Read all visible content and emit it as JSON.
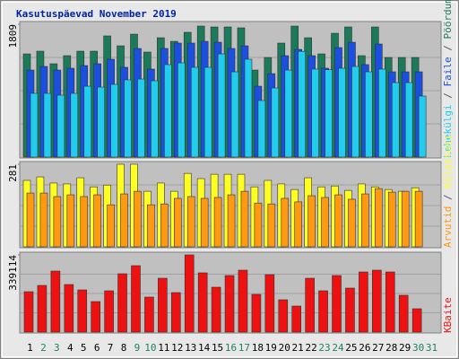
{
  "chart_data": {
    "type": "bar",
    "title": "Kasutuspäevad November 2019",
    "categories": [
      "1",
      "2",
      "3",
      "4",
      "5",
      "6",
      "7",
      "8",
      "9",
      "10",
      "11",
      "12",
      "13",
      "14",
      "15",
      "16",
      "17",
      "18",
      "19",
      "20",
      "21",
      "22",
      "23",
      "24",
      "25",
      "26",
      "27",
      "28",
      "29",
      "30",
      "31"
    ],
    "weekend": [
      "2",
      "3",
      "9",
      "10",
      "16",
      "17",
      "23",
      "24",
      "30",
      "31"
    ],
    "weekend_color": "#208060",
    "panels": [
      {
        "ylim": [
          0,
          1809
        ],
        "yticks": [
          1809
        ],
        "series": [
          {
            "name": "Pöördumisi",
            "color": "#1a7a5a",
            "values": [
              1405,
              1442,
              1271,
              1381,
              1442,
              1442,
              1650,
              1515,
              1674,
              1430,
              1625,
              1576,
              1699,
              1784,
              1772,
              1772,
              1760,
              1185,
              1356,
              1552,
              1784,
              1625,
              1405,
              1686,
              1772,
              1381,
              1772,
              1356,
              1356,
              1356,
              null
            ]
          },
          {
            "name": "Faile",
            "color": "#1a4fe0",
            "values": [
              1185,
              1234,
              1185,
              1210,
              1246,
              1271,
              1332,
              1222,
              1479,
              1198,
              1479,
              1552,
              1552,
              1576,
              1564,
              1479,
              1515,
              965,
              1136,
              1381,
              1466,
              1381,
              1210,
              1491,
              1564,
              1259,
              1540,
              1161,
              1161,
              1161,
              null
            ]
          },
          {
            "name": "Lehekülgi",
            "color": "#22ccee",
            "values": [
              868,
              868,
              843,
              868,
              965,
              953,
              990,
              1051,
              1063,
              1039,
              1259,
              1283,
              1222,
              1222,
              1405,
              1161,
              1332,
              770,
              941,
              1185,
              1440,
              1198,
              1190,
              1210,
              1234,
              1161,
              1198,
              1014,
              1014,
              831,
              null
            ]
          }
        ]
      },
      {
        "ylim": [
          0,
          281
        ],
        "yticks": [
          281
        ],
        "series": [
          {
            "name": "Külastusi",
            "color": "#ffff22",
            "values": [
              226,
              238,
              217,
              214,
              235,
              204,
              210,
              281,
              281,
              189,
              217,
              189,
              250,
              232,
              247,
              247,
              247,
              204,
              226,
              214,
              195,
              235,
              204,
              207,
              192,
              214,
              204,
              195,
              189,
              201,
              null
            ]
          },
          {
            "name": "Arvutid",
            "color": "#ff9911",
            "values": [
              183,
              183,
              171,
              177,
              171,
              177,
              143,
              180,
              189,
              143,
              146,
              165,
              171,
              165,
              168,
              177,
              189,
              149,
              146,
              165,
              153,
              174,
              168,
              177,
              162,
              180,
              198,
              186,
              189,
              189,
              null
            ]
          }
        ]
      },
      {
        "ylim": [
          0,
          339114
        ],
        "yticks": [
          339114
        ],
        "series": [
          {
            "name": "KBaite",
            "color": "#ee1111",
            "values": [
              177435,
              205036,
              268124,
              208979,
              185321,
              134062,
              181378,
              256295,
              291782,
              153777,
              236580,
              173492,
              339114,
              260238,
              197150,
              248409,
              272067,
              165606,
              252352,
              141948,
              114347,
              236580,
              181378,
              248409,
              193207,
              264181,
              272067,
              264181,
              161663,
              102518,
              null
            ]
          }
        ]
      }
    ]
  }
}
